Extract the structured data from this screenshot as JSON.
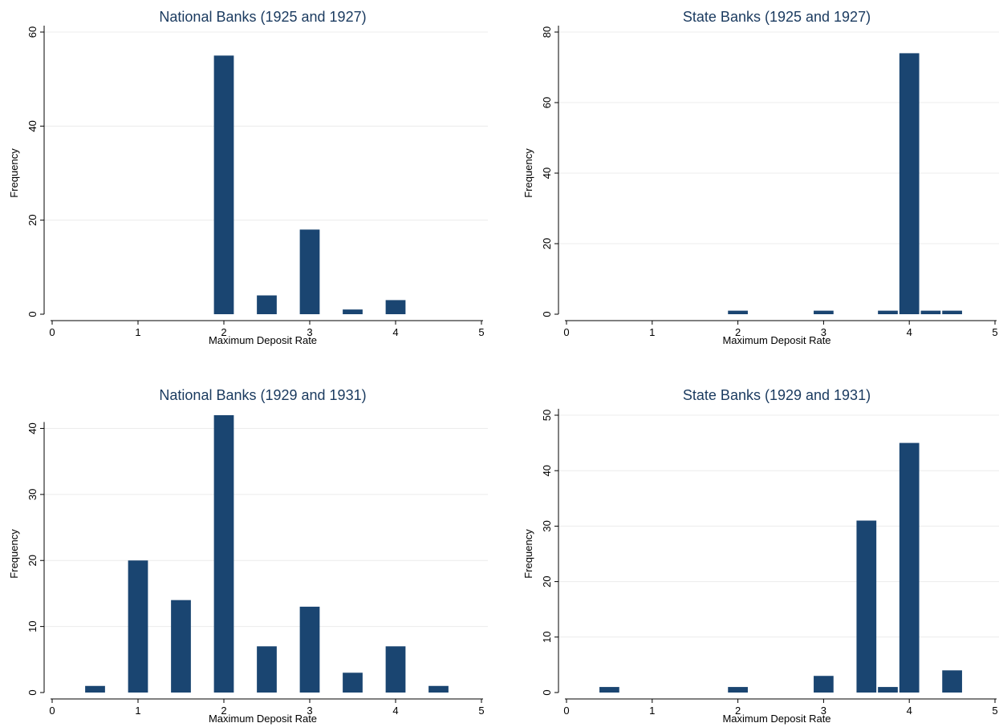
{
  "chart_data": [
    {
      "type": "bar",
      "title": "National Banks (1925 and 1927)",
      "xlabel": "Maximum Deposit Rate",
      "ylabel": "Frequency",
      "xlim": [
        0,
        5
      ],
      "ylim": [
        0,
        60
      ],
      "xticks": [
        0,
        1,
        2,
        3,
        4,
        5
      ],
      "yticks": [
        0,
        20,
        40,
        60
      ],
      "bin_width": 0.25,
      "bars": [
        {
          "x": 2.0,
          "value": 55
        },
        {
          "x": 2.5,
          "value": 4
        },
        {
          "x": 3.0,
          "value": 18
        },
        {
          "x": 3.5,
          "value": 1
        },
        {
          "x": 4.0,
          "value": 3
        }
      ],
      "bar_color": "#1a4571",
      "grid": true
    },
    {
      "type": "bar",
      "title": "State Banks (1925 and 1927)",
      "xlabel": "Maximum Deposit Rate",
      "ylabel": "Frequency",
      "xlim": [
        0,
        5
      ],
      "ylim": [
        0,
        80
      ],
      "xticks": [
        0,
        1,
        2,
        3,
        4,
        5
      ],
      "yticks": [
        0,
        20,
        40,
        60,
        80
      ],
      "bin_width": 0.25,
      "bars": [
        {
          "x": 2.0,
          "value": 1
        },
        {
          "x": 3.0,
          "value": 1
        },
        {
          "x": 3.75,
          "value": 1
        },
        {
          "x": 4.0,
          "value": 74
        },
        {
          "x": 4.25,
          "value": 1
        },
        {
          "x": 4.5,
          "value": 1
        }
      ],
      "bar_color": "#1a4571",
      "grid": true
    },
    {
      "type": "bar",
      "title": "National Banks (1929 and 1931)",
      "xlabel": "Maximum Deposit Rate",
      "ylabel": "Frequency",
      "xlim": [
        0,
        5
      ],
      "ylim": [
        0,
        42
      ],
      "xticks": [
        0,
        1,
        2,
        3,
        4,
        5
      ],
      "yticks": [
        0,
        10,
        20,
        30,
        40
      ],
      "bin_width": 0.25,
      "bars": [
        {
          "x": 0.5,
          "value": 1
        },
        {
          "x": 1.0,
          "value": 20
        },
        {
          "x": 1.5,
          "value": 14
        },
        {
          "x": 2.0,
          "value": 42
        },
        {
          "x": 2.5,
          "value": 7
        },
        {
          "x": 3.0,
          "value": 13
        },
        {
          "x": 3.5,
          "value": 3
        },
        {
          "x": 4.0,
          "value": 7
        },
        {
          "x": 4.5,
          "value": 1
        }
      ],
      "bar_color": "#1a4571",
      "grid": true
    },
    {
      "type": "bar",
      "title": "State Banks (1929 and 1931)",
      "xlabel": "Maximum Deposit Rate",
      "ylabel": "Frequency",
      "xlim": [
        0,
        5
      ],
      "ylim": [
        0,
        50
      ],
      "xticks": [
        0,
        1,
        2,
        3,
        4,
        5
      ],
      "yticks": [
        0,
        10,
        20,
        30,
        40,
        50
      ],
      "bin_width": 0.25,
      "bars": [
        {
          "x": 0.5,
          "value": 1
        },
        {
          "x": 2.0,
          "value": 1
        },
        {
          "x": 3.0,
          "value": 3
        },
        {
          "x": 3.5,
          "value": 31
        },
        {
          "x": 3.75,
          "value": 1
        },
        {
          "x": 4.0,
          "value": 45
        },
        {
          "x": 4.5,
          "value": 4
        }
      ],
      "bar_color": "#1a4571",
      "grid": true
    }
  ]
}
